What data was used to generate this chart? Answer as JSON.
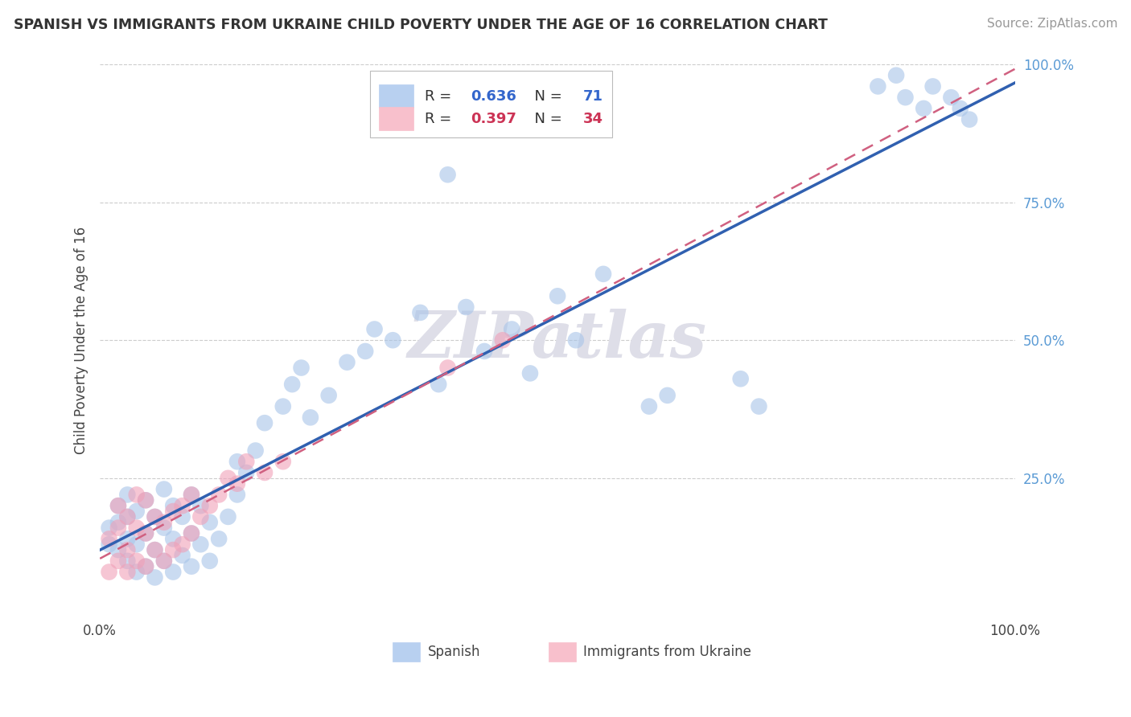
{
  "title": "SPANISH VS IMMIGRANTS FROM UKRAINE CHILD POVERTY UNDER THE AGE OF 16 CORRELATION CHART",
  "source": "Source: ZipAtlas.com",
  "ylabel": "Child Poverty Under the Age of 16",
  "xlim": [
    0,
    1.0
  ],
  "ylim": [
    0,
    1.0
  ],
  "spanish_color": "#a8c4e8",
  "ukraine_color": "#f0a0b8",
  "spanish_line_color": "#3060b0",
  "ukraine_line_color": "#d06080",
  "watermark_text": "ZIPatlas",
  "watermark_color": "#e8e8ee",
  "background_color": "#ffffff",
  "grid_color": "#cccccc",
  "legend_blue_fill": "#b8d0f0",
  "legend_pink_fill": "#f8c0cc",
  "R_blue": "0.636",
  "N_blue": "71",
  "R_pink": "0.397",
  "N_pink": "34",
  "value_color_blue": "#3366cc",
  "value_color_pink": "#cc3355",
  "ytick_color": "#5b9bd5",
  "sp_x": [
    0.01,
    0.01,
    0.02,
    0.02,
    0.02,
    0.03,
    0.03,
    0.03,
    0.03,
    0.04,
    0.04,
    0.04,
    0.05,
    0.05,
    0.05,
    0.06,
    0.06,
    0.06,
    0.07,
    0.07,
    0.07,
    0.08,
    0.08,
    0.08,
    0.09,
    0.09,
    0.1,
    0.1,
    0.1,
    0.11,
    0.11,
    0.12,
    0.12,
    0.13,
    0.14,
    0.15,
    0.15,
    0.16,
    0.17,
    0.18,
    0.2,
    0.21,
    0.22,
    0.23,
    0.25,
    0.27,
    0.29,
    0.3,
    0.32,
    0.35,
    0.37,
    0.4,
    0.42,
    0.45,
    0.47,
    0.5,
    0.52,
    0.55,
    0.38,
    0.6,
    0.62,
    0.7,
    0.72,
    0.85,
    0.87,
    0.88,
    0.9,
    0.91,
    0.93,
    0.94,
    0.95
  ],
  "sp_y": [
    0.13,
    0.16,
    0.12,
    0.17,
    0.2,
    0.1,
    0.14,
    0.18,
    0.22,
    0.08,
    0.13,
    0.19,
    0.09,
    0.15,
    0.21,
    0.07,
    0.12,
    0.18,
    0.1,
    0.16,
    0.23,
    0.08,
    0.14,
    0.2,
    0.11,
    0.18,
    0.09,
    0.15,
    0.22,
    0.13,
    0.2,
    0.1,
    0.17,
    0.14,
    0.18,
    0.22,
    0.28,
    0.26,
    0.3,
    0.35,
    0.38,
    0.42,
    0.45,
    0.36,
    0.4,
    0.46,
    0.48,
    0.52,
    0.5,
    0.55,
    0.42,
    0.56,
    0.48,
    0.52,
    0.44,
    0.58,
    0.5,
    0.62,
    0.8,
    0.38,
    0.4,
    0.43,
    0.38,
    0.96,
    0.98,
    0.94,
    0.92,
    0.96,
    0.94,
    0.92,
    0.9
  ],
  "uk_x": [
    0.01,
    0.01,
    0.02,
    0.02,
    0.02,
    0.03,
    0.03,
    0.03,
    0.04,
    0.04,
    0.04,
    0.05,
    0.05,
    0.05,
    0.06,
    0.06,
    0.07,
    0.07,
    0.08,
    0.08,
    0.09,
    0.09,
    0.1,
    0.1,
    0.11,
    0.12,
    0.13,
    0.14,
    0.15,
    0.16,
    0.18,
    0.2,
    0.38,
    0.44
  ],
  "uk_y": [
    0.08,
    0.14,
    0.1,
    0.16,
    0.2,
    0.08,
    0.12,
    0.18,
    0.1,
    0.16,
    0.22,
    0.09,
    0.15,
    0.21,
    0.12,
    0.18,
    0.1,
    0.17,
    0.12,
    0.19,
    0.13,
    0.2,
    0.15,
    0.22,
    0.18,
    0.2,
    0.22,
    0.25,
    0.24,
    0.28,
    0.26,
    0.28,
    0.45,
    0.5
  ]
}
